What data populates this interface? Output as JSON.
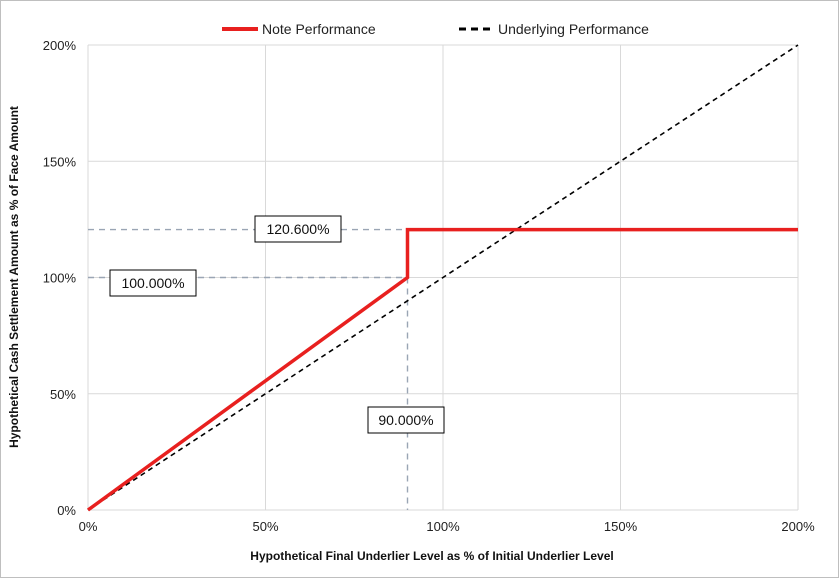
{
  "chart_data": {
    "type": "line",
    "xlabel": "Hypothetical Final Underlier Level as % of Initial Underlier Level",
    "ylabel": "Hypothetical Cash Settlement Amount as % of Face Amount",
    "xlim": [
      0,
      200
    ],
    "ylim": [
      0,
      200
    ],
    "x_ticks": [
      "0%",
      "50%",
      "100%",
      "150%",
      "200%"
    ],
    "y_ticks": [
      "0%",
      "50%",
      "100%",
      "150%",
      "200%"
    ],
    "grid": true,
    "legend_position": "top",
    "series": [
      {
        "name": "Note Performance",
        "color": "#e8201f",
        "style": "solid",
        "points": [
          [
            0,
            0
          ],
          [
            90,
            100
          ],
          [
            90,
            120.6
          ],
          [
            200,
            120.6
          ]
        ]
      },
      {
        "name": "Underlying Performance",
        "color": "#000000",
        "style": "dashed",
        "points": [
          [
            0,
            0
          ],
          [
            200,
            200
          ]
        ]
      }
    ],
    "annotations": [
      {
        "text": "120.600%",
        "x": 90,
        "y": 120.6,
        "kind": "horizontal-guide"
      },
      {
        "text": "100.000%",
        "x": 90,
        "y": 100,
        "kind": "horizontal-guide"
      },
      {
        "text": "90.000%",
        "x": 90,
        "y": 0,
        "kind": "vertical-guide"
      }
    ]
  }
}
